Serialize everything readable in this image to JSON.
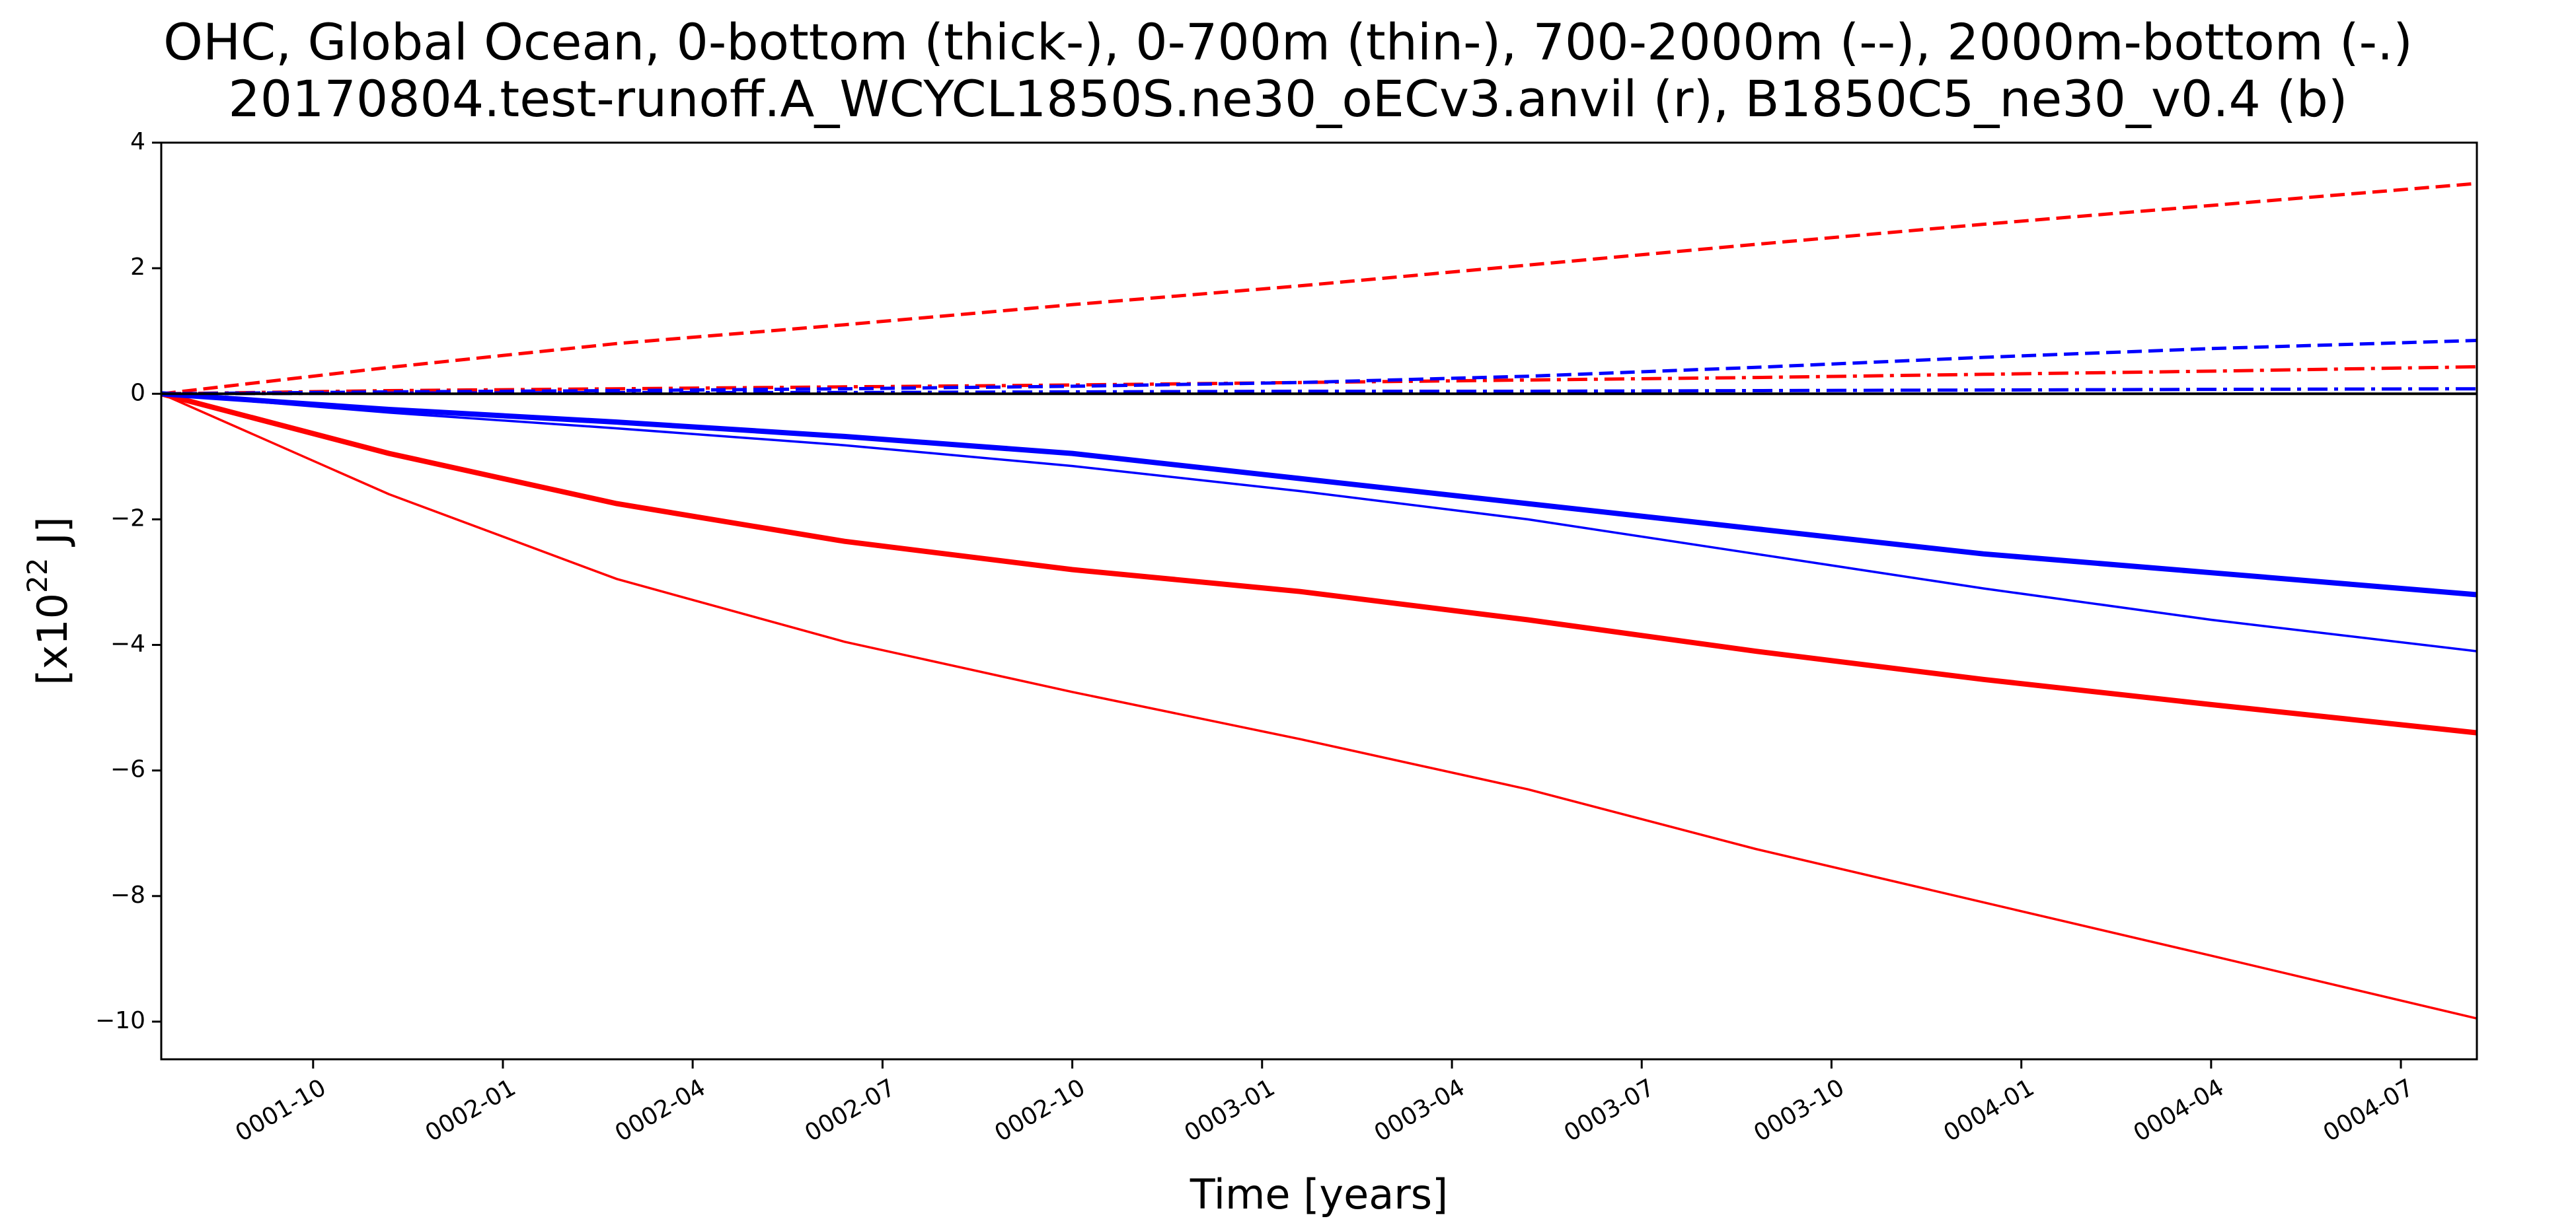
{
  "title": {
    "line1": "OHC, Global Ocean, 0-bottom (thick-), 0-700m (thin-), 700-2000m (--), 2000m-bottom (-.)",
    "line2": "20170804.test-runoff.A_WCYCL1850S.ne30_oECv3.anvil (r), B1850C5_ne30_v0.4 (b)"
  },
  "chart_data": {
    "type": "line",
    "xlabel": "Time [years]",
    "ylabel_prefix": "[x10",
    "ylabel_exp": "22",
    "ylabel_suffix": " J]",
    "xlim": [
      2.0,
      4.5417
    ],
    "ylim": [
      -10.6,
      4.0
    ],
    "grid": false,
    "y_ticks": [
      4,
      2,
      0,
      -2,
      -4,
      -6,
      -8,
      -10
    ],
    "y_tick_labels": [
      "4",
      "2",
      "0",
      "−2",
      "−4",
      "−6",
      "−8",
      "−10"
    ],
    "x_ticks": [
      2.1667,
      2.375,
      2.5833,
      2.7917,
      3.0,
      3.2083,
      3.4167,
      3.625,
      3.8333,
      4.0417,
      4.25,
      4.4583
    ],
    "x_tick_labels": [
      "0001-10",
      "0002-01",
      "0002-04",
      "0002-07",
      "0002-10",
      "0003-01",
      "0003-04",
      "0003-07",
      "0003-10",
      "0004-01",
      "0004-04",
      "0004-07"
    ],
    "x": [
      2.0,
      2.25,
      2.5,
      2.75,
      3.0,
      3.25,
      3.5,
      3.75,
      4.0,
      4.25,
      4.5417
    ],
    "series": [
      {
        "color": "#ff0000",
        "style": "solid",
        "width": "thick",
        "values": [
          0.0,
          -0.95,
          -1.75,
          -2.35,
          -2.8,
          -3.15,
          -3.6,
          -4.1,
          -4.55,
          -4.95,
          -5.4
        ]
      },
      {
        "color": "#ff0000",
        "style": "solid",
        "width": "thin",
        "values": [
          0.0,
          -1.6,
          -2.95,
          -3.95,
          -4.75,
          -5.5,
          -6.3,
          -7.25,
          -8.1,
          -8.95,
          -9.95
        ]
      },
      {
        "color": "#ff0000",
        "style": "dashed",
        "width": "medium",
        "values": [
          0.0,
          0.42,
          0.8,
          1.1,
          1.42,
          1.72,
          2.05,
          2.38,
          2.7,
          3.0,
          3.35
        ]
      },
      {
        "color": "#ff0000",
        "style": "dashdot",
        "width": "medium",
        "values": [
          0.0,
          0.05,
          0.08,
          0.11,
          0.14,
          0.18,
          0.22,
          0.26,
          0.31,
          0.36,
          0.43
        ]
      },
      {
        "color": "#0000ff",
        "style": "solid",
        "width": "thick",
        "values": [
          0.0,
          -0.25,
          -0.45,
          -0.68,
          -0.95,
          -1.35,
          -1.75,
          -2.15,
          -2.55,
          -2.85,
          -3.2
        ]
      },
      {
        "color": "#0000ff",
        "style": "solid",
        "width": "thin",
        "values": [
          0.0,
          -0.3,
          -0.55,
          -0.82,
          -1.15,
          -1.55,
          -2.0,
          -2.55,
          -3.1,
          -3.6,
          -4.1
        ]
      },
      {
        "color": "#0000ff",
        "style": "dashed",
        "width": "medium",
        "values": [
          0.0,
          0.03,
          0.05,
          0.08,
          0.12,
          0.18,
          0.28,
          0.42,
          0.58,
          0.72,
          0.85
        ]
      },
      {
        "color": "#0000ff",
        "style": "dashdot",
        "width": "medium",
        "values": [
          0.0,
          0.01,
          0.02,
          0.02,
          0.03,
          0.04,
          0.04,
          0.05,
          0.06,
          0.07,
          0.08
        ]
      }
    ]
  }
}
